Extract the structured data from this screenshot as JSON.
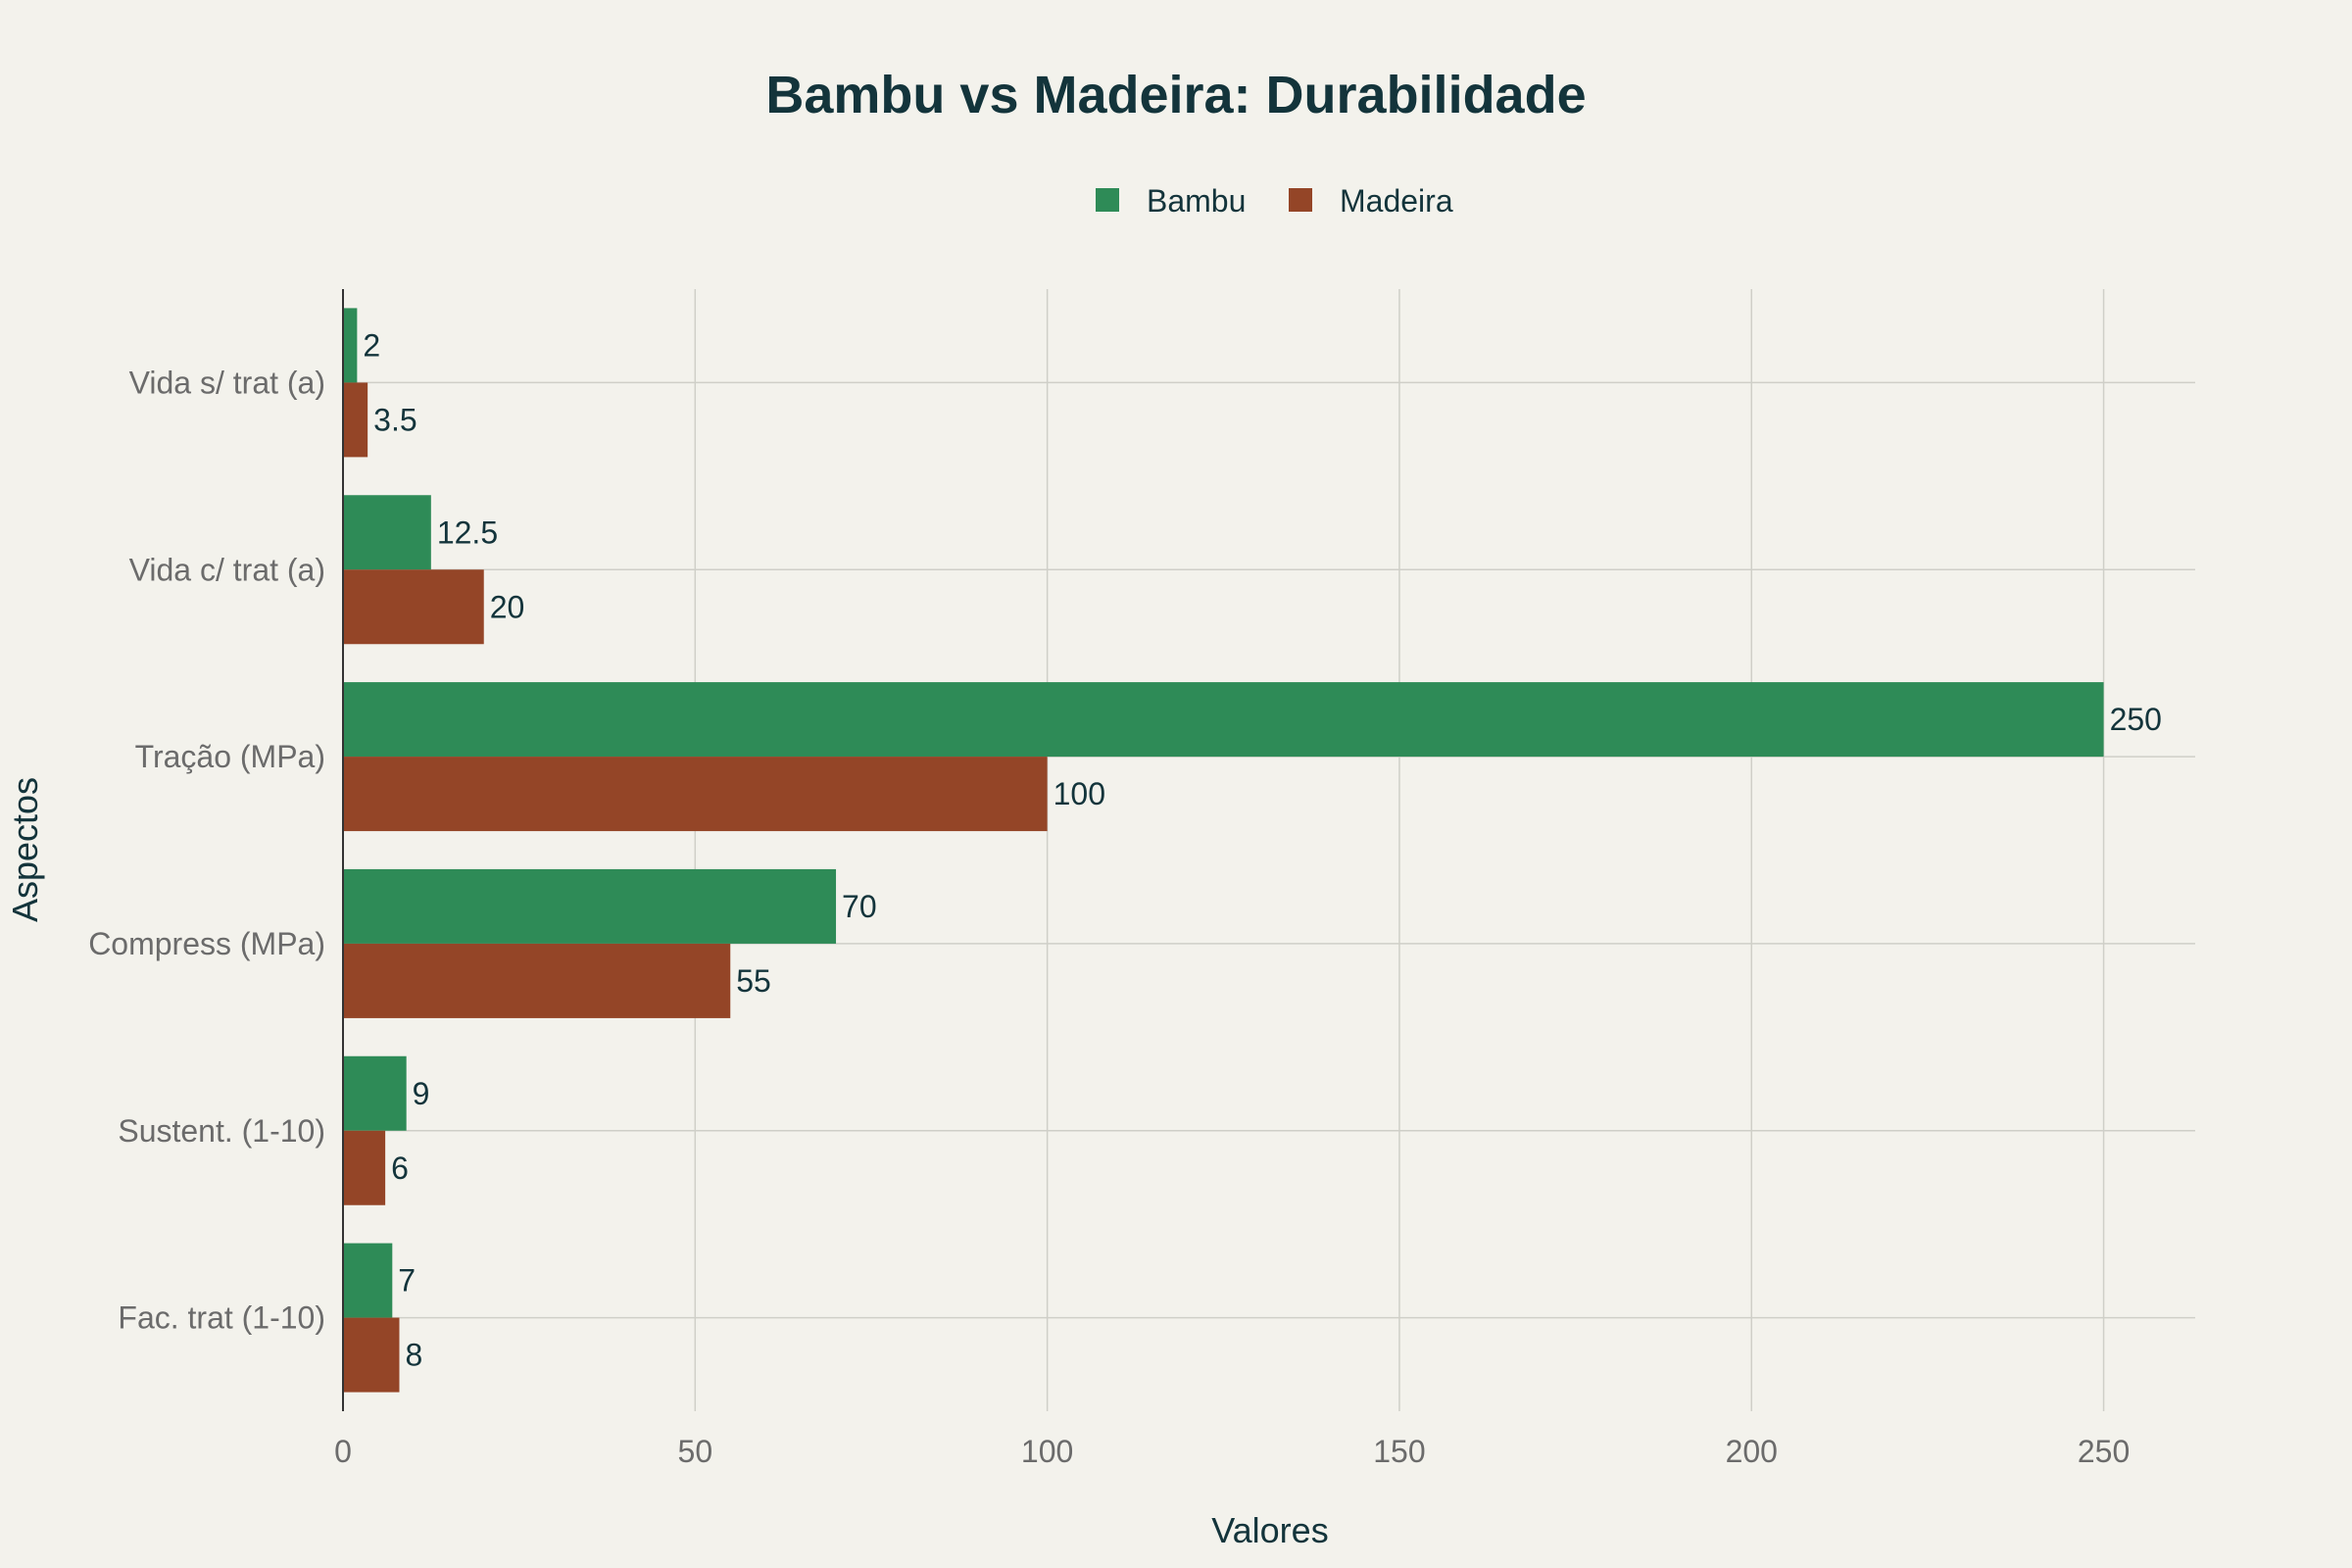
{
  "chart_data": {
    "type": "bar",
    "orientation": "horizontal",
    "title": "Bambu vs Madeira: Durabilidade",
    "xlabel": "Valores",
    "ylabel": "Aspectos",
    "categories": [
      "Vida s/ trat (a)",
      "Vida c/ trat (a)",
      "Tração (MPa)",
      "Compress (MPa)",
      "Sustent. (1-10)",
      "Fac. trat (1-10)"
    ],
    "series": [
      {
        "name": "Bambu",
        "color": "#2e8b57",
        "values": [
          2,
          12.5,
          250,
          70,
          9,
          7
        ]
      },
      {
        "name": "Madeira",
        "color": "#944527",
        "values": [
          3.5,
          20,
          100,
          55,
          6,
          8
        ]
      }
    ],
    "xlim": [
      0,
      263
    ],
    "xticks": [
      0,
      50,
      100,
      150,
      200,
      250
    ],
    "grid": true,
    "legend_position": "top-center"
  }
}
